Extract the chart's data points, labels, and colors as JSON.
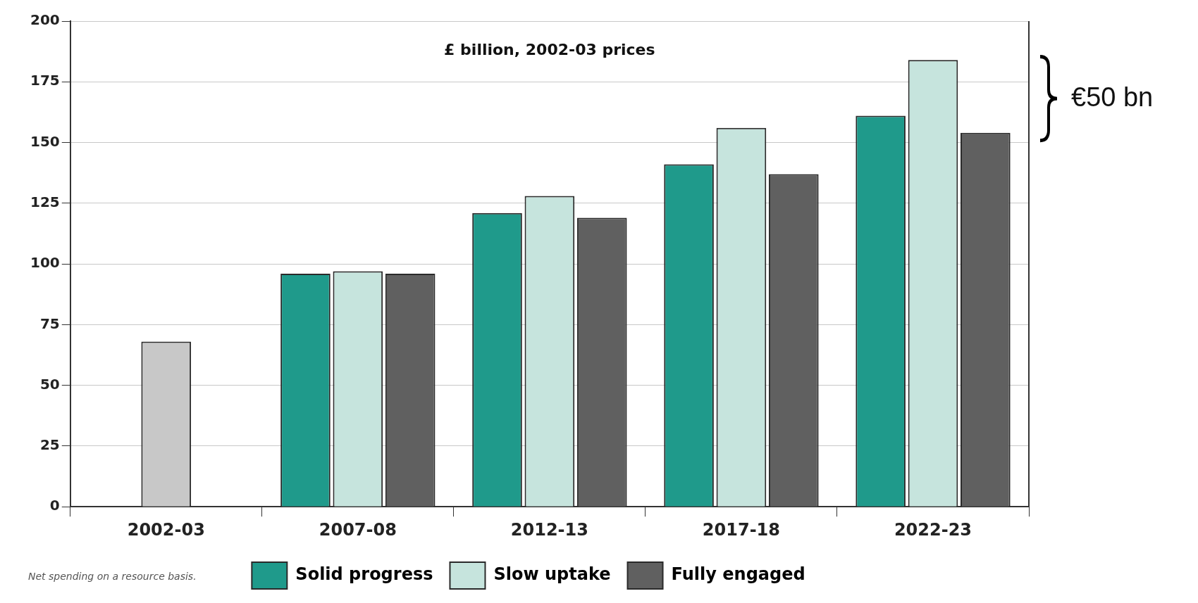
{
  "chart_data": {
    "type": "bar",
    "categories": [
      "2002-03",
      "2007-08",
      "2012-13",
      "2017-18",
      "2022-23"
    ],
    "series": [
      {
        "name": "Solid progress",
        "color": "#1f9a8b",
        "values": [
          null,
          96,
          121,
          141,
          161
        ]
      },
      {
        "name": "Slow uptake",
        "color": "#c6e4dd",
        "colors": [
          "#c8c8c8",
          "#c6e4dd",
          "#c6e4dd",
          "#c6e4dd",
          "#c6e4dd"
        ],
        "values": [
          68,
          97,
          128,
          156,
          184
        ]
      },
      {
        "name": "Fully engaged",
        "color": "#606060",
        "values": [
          null,
          96,
          119,
          137,
          154
        ]
      }
    ],
    "ylim": [
      0,
      200
    ],
    "yticks": [
      0,
      25,
      50,
      75,
      100,
      125,
      150,
      175,
      200
    ],
    "grid": "y",
    "legend": "bottom",
    "annotations": [
      "£ billion, 2002-03 prices",
      "Net spending on a resource basis.",
      "€50 bn"
    ]
  }
}
